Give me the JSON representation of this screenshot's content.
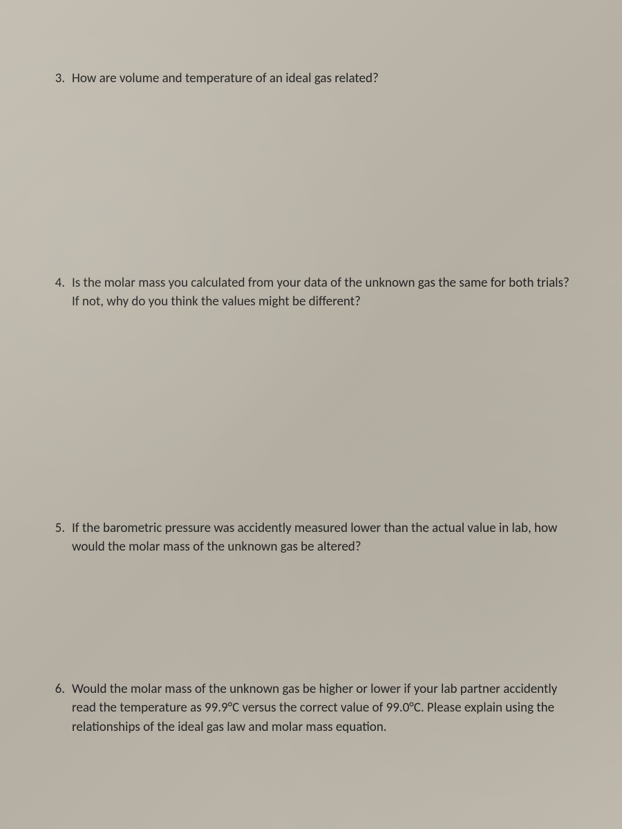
{
  "questions": [
    {
      "number": "3.",
      "text": "How are volume and temperature of an ideal gas related?"
    },
    {
      "number": "4.",
      "text": "Is the molar mass you calculated from your data of the unknown gas the same for both trials?  If not, why do you think the values might be different?"
    },
    {
      "number": "5.",
      "text": "If the barometric pressure was accidently measured lower than the actual value in lab, how would the molar mass of the unknown gas be altered?"
    },
    {
      "number": "6.",
      "text": "Would the molar mass of the unknown gas be higher or lower if your lab partner accidently read the temperature as 99.9°C versus the correct value of 99.0°C.  Please explain using the relationships of the ideal gas law and molar mass equation."
    }
  ]
}
